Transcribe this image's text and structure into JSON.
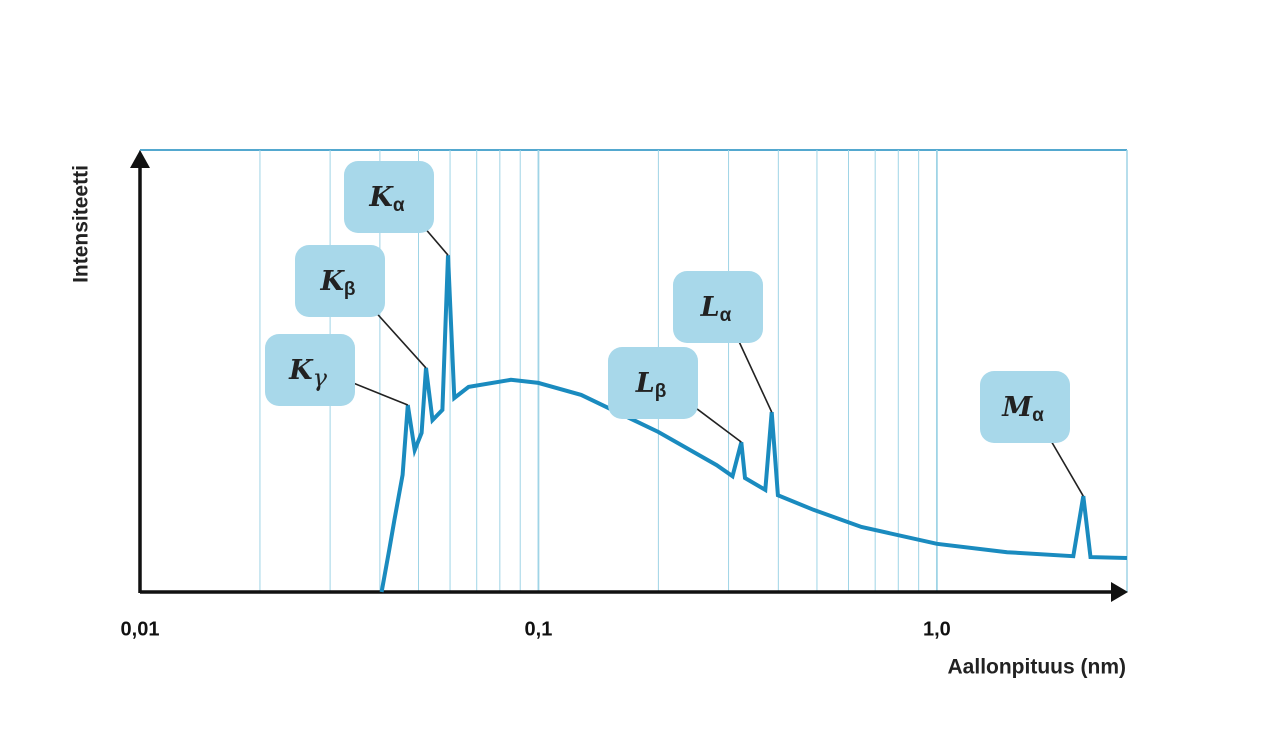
{
  "chart_data": {
    "type": "line",
    "x_label": "Aallonpituus (nm)",
    "y_label": "Intensiteetti",
    "x_scale": "log",
    "xlim": [
      0.01,
      3
    ],
    "ylim": [
      0,
      100
    ],
    "xticks": [
      {
        "value": 0.01,
        "label": "0,01"
      },
      {
        "value": 0.1,
        "label": "0,1"
      },
      {
        "value": 1.0,
        "label": "1,0"
      }
    ],
    "x_minor_grid": [
      0.02,
      0.03,
      0.04,
      0.05,
      0.06,
      0.07,
      0.08,
      0.09,
      0.2,
      0.3,
      0.4,
      0.5,
      0.6,
      0.7,
      0.8,
      0.9
    ],
    "grid": true,
    "color": "#1a8bbf",
    "grid_color": "#9fd4e6",
    "x": [
      0.0404,
      0.0422,
      0.0435,
      0.0456,
      0.047,
      0.0489,
      0.0509,
      0.0522,
      0.0542,
      0.0574,
      0.0593,
      0.0615,
      0.0668,
      0.0853,
      0.1,
      0.128,
      0.2,
      0.28,
      0.307,
      0.323,
      0.33,
      0.371,
      0.385,
      0.399,
      0.49,
      0.647,
      1.0,
      1.5,
      2.2,
      2.33,
      2.43,
      3.0
    ],
    "values": [
      0,
      9.5,
      16.3,
      26.5,
      42.3,
      32.1,
      36,
      50.7,
      38.9,
      41.2,
      76.2,
      43.9,
      46.4,
      48.0,
      47.3,
      44.6,
      36.2,
      28.7,
      26.2,
      33.9,
      25.8,
      23.1,
      40.7,
      21.9,
      18.6,
      14.7,
      10.9,
      9.0,
      8.1,
      21.7,
      7.9,
      7.7
    ],
    "annotations": [
      {
        "text": "K",
        "sub": "γ"
      },
      {
        "text": "K",
        "sub": "β"
      },
      {
        "text": "K",
        "sub": "α"
      },
      {
        "text": "L",
        "sub": "β"
      },
      {
        "text": "L",
        "sub": "α"
      },
      {
        "text": "M",
        "sub": "α"
      }
    ]
  }
}
